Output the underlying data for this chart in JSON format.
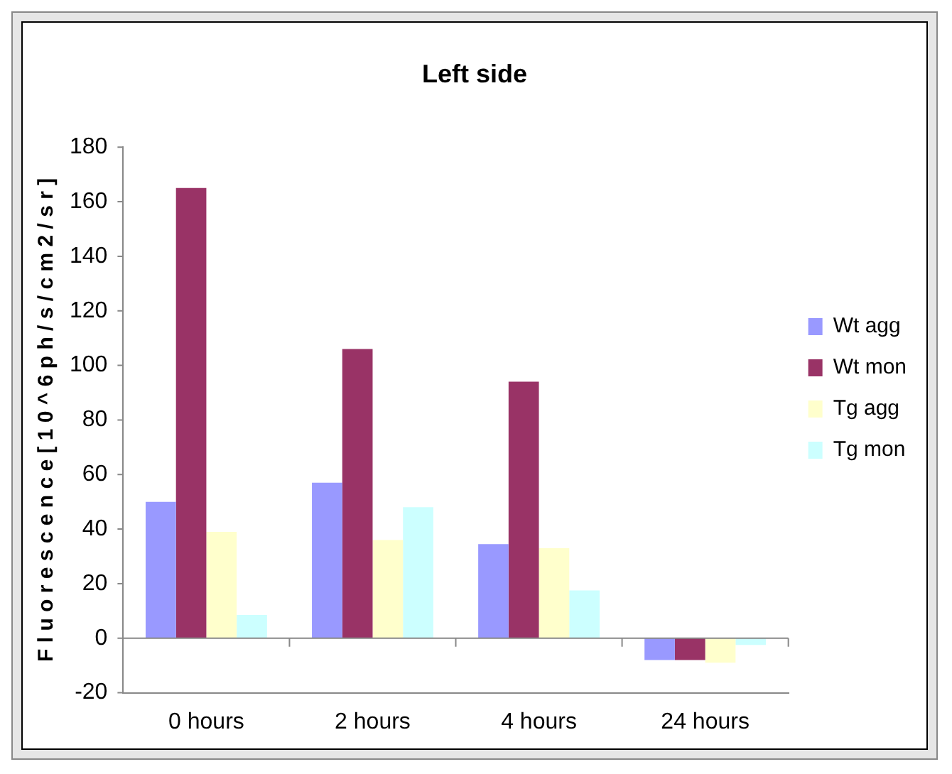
{
  "chart_data": {
    "type": "bar",
    "title": "Left side",
    "ylabel": "F l u o r e s c e n c e [ 1 0 ^ 6 p h / s / c m 2 / s r ]",
    "categories": [
      "0 hours",
      "2 hours",
      "4 hours",
      "24 hours"
    ],
    "series": [
      {
        "name": "Wt agg",
        "color": "#9999ff",
        "values": [
          50,
          57,
          34.5,
          -8
        ]
      },
      {
        "name": "Wt mon",
        "color": "#993366",
        "values": [
          165,
          106,
          94,
          -8
        ]
      },
      {
        "name": "Tg agg",
        "color": "#ffffcc",
        "values": [
          39,
          36,
          33,
          -9
        ]
      },
      {
        "name": "Tg mon",
        "color": "#ccffff",
        "values": [
          8.5,
          48,
          17.5,
          -2.5
        ]
      }
    ],
    "ylim": [
      -20,
      180
    ],
    "yticks": [
      -20,
      0,
      20,
      40,
      60,
      80,
      100,
      120,
      140,
      160,
      180
    ],
    "grid": false,
    "ref_lines": [
      {
        "axis": "y",
        "value": 0,
        "color": "#888888"
      }
    ],
    "legend": "right"
  }
}
